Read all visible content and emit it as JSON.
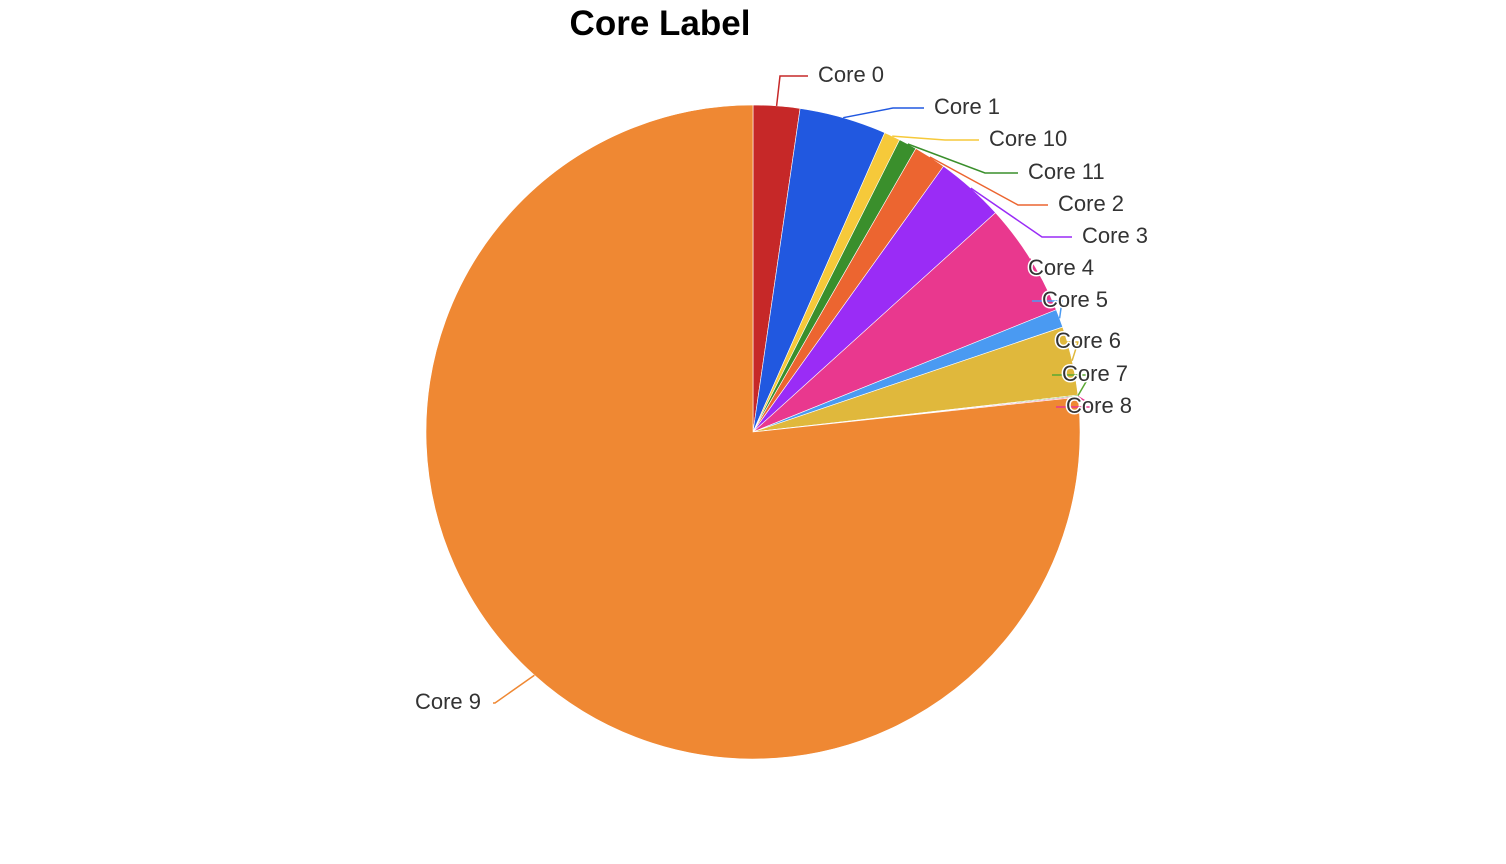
{
  "chart_data": {
    "type": "pie",
    "title": "Core Label",
    "legend": "none",
    "slices": [
      {
        "label": "Core 0",
        "value": 2.3,
        "color": "#c62828"
      },
      {
        "label": "Core 1",
        "value": 4.3,
        "color": "#2158e0"
      },
      {
        "label": "Core 10",
        "value": 0.8,
        "color": "#f6c93a"
      },
      {
        "label": "Core 11",
        "value": 0.9,
        "color": "#3a8f2c"
      },
      {
        "label": "Core 2",
        "value": 1.6,
        "color": "#ec6530"
      },
      {
        "label": "Core 3",
        "value": 3.4,
        "color": "#9a2cf6"
      },
      {
        "label": "Core 4",
        "value": 5.6,
        "color": "#e9388e"
      },
      {
        "label": "Core 5",
        "value": 0.9,
        "color": "#4a9af2"
      },
      {
        "label": "Core 6",
        "value": 3.4,
        "color": "#e0b83c"
      },
      {
        "label": "Core 7",
        "value": 0.05,
        "color": "#5aa832"
      },
      {
        "label": "Core 8",
        "value": 0.05,
        "color": "#e9388e"
      },
      {
        "label": "Core 9",
        "value": 76.7,
        "color": "#ef8833"
      }
    ]
  }
}
